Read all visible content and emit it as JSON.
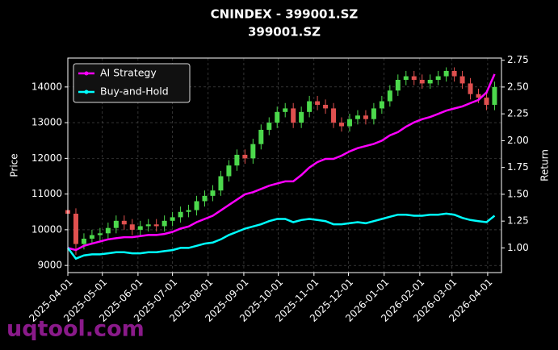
{
  "chart_data": {
    "type": "candlestick",
    "title": "CNINDEX - 399001.SZ",
    "subtitle": "399001.SZ",
    "ylabel": "Price",
    "y2label": "Return",
    "watermark": "uqtool.com",
    "x": [
      "2025-04-01",
      "2025-04-08",
      "2025-04-15",
      "2025-04-22",
      "2025-04-29",
      "2025-05-06",
      "2025-05-13",
      "2025-05-20",
      "2025-05-27",
      "2025-06-03",
      "2025-06-10",
      "2025-06-17",
      "2025-06-24",
      "2025-07-01",
      "2025-07-08",
      "2025-07-15",
      "2025-07-22",
      "2025-07-29",
      "2025-08-05",
      "2025-08-12",
      "2025-08-19",
      "2025-08-26",
      "2025-09-02",
      "2025-09-09",
      "2025-09-16",
      "2025-09-23",
      "2025-09-30",
      "2025-10-07",
      "2025-10-14",
      "2025-10-21",
      "2025-10-28",
      "2025-11-04",
      "2025-11-11",
      "2025-11-18",
      "2025-11-25",
      "2025-12-02",
      "2025-12-09",
      "2025-12-16",
      "2025-12-23",
      "2025-12-30",
      "2026-01-06",
      "2026-01-13",
      "2026-01-20",
      "2026-01-27",
      "2026-02-03",
      "2026-02-10",
      "2026-02-17",
      "2026-02-24",
      "2026-03-03",
      "2026-03-10",
      "2026-03-17",
      "2026-03-24",
      "2026-03-31",
      "2026-04-07"
    ],
    "open": [
      10550,
      10450,
      9600,
      9750,
      9850,
      9900,
      10050,
      10250,
      10150,
      10000,
      10100,
      10150,
      10100,
      10250,
      10350,
      10500,
      10550,
      10800,
      10950,
      11100,
      11500,
      11800,
      12100,
      12000,
      12400,
      12800,
      13000,
      13300,
      13400,
      13000,
      13300,
      13600,
      13500,
      13400,
      13000,
      12900,
      13100,
      13200,
      13100,
      13400,
      13600,
      13900,
      14200,
      14300,
      14200,
      14100,
      14200,
      14300,
      14450,
      14300,
      14100,
      13800,
      13700,
      13500
    ],
    "high": [
      10700,
      10600,
      9900,
      10000,
      10050,
      10200,
      10400,
      10400,
      10300,
      10250,
      10300,
      10300,
      10400,
      10500,
      10650,
      10700,
      10950,
      11100,
      11250,
      11650,
      11950,
      12250,
      12250,
      12550,
      12950,
      13150,
      13450,
      13550,
      13550,
      13450,
      13750,
      13750,
      13650,
      13550,
      13150,
      13250,
      13350,
      13350,
      13550,
      13750,
      14050,
      14350,
      14450,
      14450,
      14350,
      14350,
      14450,
      14550,
      14550,
      14450,
      14250,
      13950,
      13850,
      14150
    ],
    "low": [
      10300,
      9300,
      9450,
      9600,
      9700,
      9750,
      9900,
      10000,
      9850,
      9850,
      9950,
      9950,
      9950,
      10100,
      10200,
      10350,
      10400,
      10650,
      10800,
      10950,
      11350,
      11650,
      11850,
      11850,
      12250,
      12650,
      12850,
      13150,
      12850,
      12850,
      13150,
      13350,
      13250,
      12850,
      12750,
      12750,
      12950,
      12950,
      12950,
      13250,
      13450,
      13750,
      14050,
      14050,
      13950,
      13950,
      14050,
      14150,
      14150,
      13950,
      13650,
      13550,
      13350,
      13350
    ],
    "close": [
      10450,
      9600,
      9750,
      9850,
      9900,
      10050,
      10250,
      10150,
      10000,
      10100,
      10150,
      10100,
      10250,
      10350,
      10500,
      10550,
      10800,
      10950,
      11100,
      11500,
      11800,
      12100,
      12000,
      12400,
      12800,
      13000,
      13300,
      13400,
      13000,
      13300,
      13600,
      13500,
      13400,
      13000,
      12900,
      13100,
      13200,
      13100,
      13400,
      13600,
      13900,
      14200,
      14300,
      14200,
      14100,
      14200,
      14300,
      14450,
      14300,
      14100,
      13800,
      13700,
      13500,
      14000
    ],
    "up_color": "#4cd94c",
    "down_color": "#e0504f",
    "series": [
      {
        "name": "AI Strategy",
        "color": "#ff00ff",
        "axis": "y2",
        "values": [
          1.0,
          0.98,
          1.02,
          1.04,
          1.06,
          1.08,
          1.09,
          1.1,
          1.1,
          1.11,
          1.12,
          1.12,
          1.13,
          1.15,
          1.18,
          1.2,
          1.24,
          1.27,
          1.3,
          1.35,
          1.4,
          1.45,
          1.5,
          1.52,
          1.55,
          1.58,
          1.6,
          1.62,
          1.62,
          1.68,
          1.75,
          1.8,
          1.83,
          1.83,
          1.86,
          1.9,
          1.93,
          1.95,
          1.97,
          2.0,
          2.05,
          2.08,
          2.13,
          2.17,
          2.2,
          2.22,
          2.25,
          2.28,
          2.3,
          2.32,
          2.35,
          2.38,
          2.45,
          2.62
        ]
      },
      {
        "name": "Buy-and-Hold",
        "color": "#00ffff",
        "axis": "y2",
        "values": [
          1.0,
          0.9,
          0.93,
          0.94,
          0.94,
          0.95,
          0.96,
          0.96,
          0.95,
          0.95,
          0.96,
          0.96,
          0.97,
          0.98,
          1.0,
          1.0,
          1.02,
          1.04,
          1.05,
          1.08,
          1.12,
          1.15,
          1.18,
          1.2,
          1.22,
          1.25,
          1.27,
          1.27,
          1.24,
          1.26,
          1.27,
          1.26,
          1.25,
          1.22,
          1.22,
          1.23,
          1.24,
          1.23,
          1.25,
          1.27,
          1.29,
          1.31,
          1.31,
          1.3,
          1.3,
          1.31,
          1.31,
          1.32,
          1.31,
          1.28,
          1.26,
          1.25,
          1.24,
          1.3
        ]
      }
    ],
    "xlim": [
      "2025-04-01",
      "2026-04-13"
    ],
    "xticks": [
      "2025-04-01",
      "2025-05-01",
      "2025-06-01",
      "2025-07-01",
      "2025-08-01",
      "2025-09-01",
      "2025-10-01",
      "2025-11-01",
      "2025-12-01",
      "2026-01-01",
      "2026-02-01",
      "2026-03-01",
      "2026-04-01"
    ],
    "ylim": [
      8800,
      14810
    ],
    "yticks": [
      9000,
      10000,
      11000,
      12000,
      13000,
      14000
    ],
    "y2lim": [
      0.77,
      2.77
    ],
    "y2ticks": [
      {
        "value": 1,
        "label": "1.00"
      },
      1.25,
      {
        "value": 1.5,
        "label": "1.50"
      },
      1.75,
      {
        "value": 2,
        "label": "2.00"
      },
      2.25,
      {
        "value": 2.5,
        "label": "2.50"
      },
      2.75
    ],
    "grid": true,
    "legend": "upper left"
  }
}
